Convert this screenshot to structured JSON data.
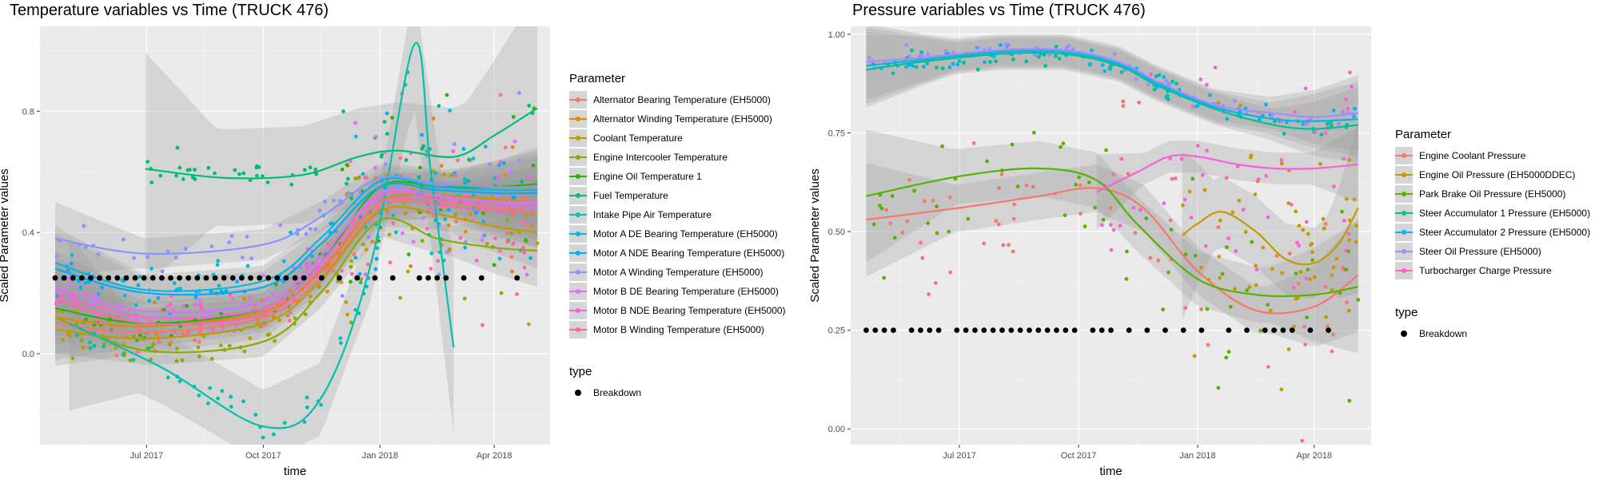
{
  "chart_data": [
    {
      "type": "scatter",
      "title": "Temperature variables vs Time (TRUCK 476)",
      "xlabel": "time",
      "ylabel": "Scaled Parameter values",
      "x_ticks": [
        "Jul 2017",
        "Oct 2017",
        "Jan 2018",
        "Apr 2018"
      ],
      "x_tick_dates": [
        "2017-07-01",
        "2017-10-01",
        "2018-01-01",
        "2018-04-01"
      ],
      "xlim": [
        "2017-04-08",
        "2018-05-15"
      ],
      "y_ticks": [
        "0.0",
        "0.4",
        "0.8"
      ],
      "y_tick_values": [
        0.0,
        0.4,
        0.8
      ],
      "ylim": [
        -0.3,
        1.08
      ],
      "legend_title": "Parameter",
      "legend_position": "right",
      "type_legend_title": "type",
      "type_legend_label": "Breakdown",
      "grid": true,
      "series": [
        {
          "name": "Alternator Bearing Temperature (EH5000)",
          "color": "#F8766D",
          "x": [
            "2017-04-20",
            "2017-07-01",
            "2017-10-01",
            "2017-11-15",
            "2018-01-01",
            "2018-02-15",
            "2018-04-01",
            "2018-05-05"
          ],
          "values": [
            0.1,
            0.07,
            0.12,
            0.25,
            0.48,
            0.5,
            0.48,
            0.47
          ]
        },
        {
          "name": "Alternator Winding Temperature (EH5000)",
          "color": "#E18A00",
          "x": [
            "2017-04-20",
            "2017-07-01",
            "2017-10-01",
            "2017-11-15",
            "2018-01-01",
            "2018-02-15",
            "2018-04-01",
            "2018-05-05"
          ],
          "values": [
            0.12,
            0.09,
            0.14,
            0.27,
            0.5,
            0.52,
            0.51,
            0.5
          ]
        },
        {
          "name": "Coolant Temperature",
          "color": "#BE9C00",
          "x": [
            "2017-04-20",
            "2017-07-01",
            "2017-10-01",
            "2017-11-15",
            "2018-01-01",
            "2018-02-15",
            "2018-04-01",
            "2018-05-05"
          ],
          "values": [
            0.08,
            0.05,
            0.1,
            0.24,
            0.47,
            0.46,
            0.42,
            0.4
          ]
        },
        {
          "name": "Engine Intercooler Temperature",
          "color": "#8CAB00",
          "x": [
            "2017-04-20",
            "2017-07-01",
            "2017-10-01",
            "2017-11-15",
            "2018-01-01",
            "2018-02-15",
            "2018-04-01",
            "2018-05-05"
          ],
          "values": [
            0.12,
            0.01,
            0.04,
            0.2,
            0.44,
            0.38,
            0.35,
            0.34
          ]
        },
        {
          "name": "Engine Oil Temperature 1",
          "color": "#24B700",
          "x": [
            "2017-04-20",
            "2017-07-01",
            "2017-10-01",
            "2017-11-15",
            "2018-01-01",
            "2018-02-15",
            "2018-04-01",
            "2018-05-05"
          ],
          "values": [
            0.15,
            0.1,
            0.15,
            0.3,
            0.55,
            0.55,
            0.55,
            0.56
          ]
        },
        {
          "name": "Fuel Temperature",
          "color": "#00BE70",
          "x": [
            "2017-06-30",
            "2017-09-01",
            "2017-11-01",
            "2017-12-15",
            "2018-01-15",
            "2018-03-01",
            "2018-04-01",
            "2018-05-05"
          ],
          "values": [
            0.61,
            0.58,
            0.59,
            0.65,
            0.67,
            0.65,
            0.72,
            0.81
          ]
        },
        {
          "name": "Intake Pipe Air Temperature",
          "color": "#00C1AB",
          "x": [
            "2017-05-01",
            "2017-07-15",
            "2017-10-01",
            "2017-11-15",
            "2017-12-25",
            "2018-01-28",
            "2018-02-10",
            "2018-02-28"
          ],
          "values": [
            0.1,
            -0.05,
            -0.24,
            -0.15,
            0.3,
            1.02,
            0.6,
            0.02
          ]
        },
        {
          "name": "Motor A DE Bearing Temperature (EH5000)",
          "color": "#00BBDA",
          "x": [
            "2017-04-20",
            "2017-07-01",
            "2017-10-01",
            "2017-11-15",
            "2018-01-01",
            "2018-02-15",
            "2018-04-01",
            "2018-05-05"
          ],
          "values": [
            0.3,
            0.21,
            0.24,
            0.38,
            0.57,
            0.55,
            0.54,
            0.54
          ]
        },
        {
          "name": "Motor A NDE Bearing Temperature (EH5000)",
          "color": "#00ACFC",
          "x": [
            "2017-04-20",
            "2017-07-01",
            "2017-10-01",
            "2017-11-15",
            "2018-01-01",
            "2018-02-15",
            "2018-04-01",
            "2018-05-05"
          ],
          "values": [
            0.28,
            0.2,
            0.22,
            0.36,
            0.55,
            0.54,
            0.53,
            0.53
          ]
        },
        {
          "name": "Motor A Winding Temperature (EH5000)",
          "color": "#8B93FF",
          "x": [
            "2017-04-20",
            "2017-07-01",
            "2017-10-01",
            "2017-11-15",
            "2018-01-01",
            "2018-02-15",
            "2018-04-01",
            "2018-05-05"
          ],
          "values": [
            0.38,
            0.33,
            0.36,
            0.45,
            0.58,
            0.56,
            0.55,
            0.55
          ]
        },
        {
          "name": "Motor B DE Bearing Temperature (EH5000)",
          "color": "#D575FE",
          "x": [
            "2017-04-20",
            "2017-07-01",
            "2017-10-01",
            "2017-11-15",
            "2018-01-01",
            "2018-02-15",
            "2018-04-01",
            "2018-05-05"
          ],
          "values": [
            0.22,
            0.14,
            0.17,
            0.32,
            0.53,
            0.52,
            0.5,
            0.5
          ]
        },
        {
          "name": "Motor B NDE Bearing Temperature (EH5000)",
          "color": "#F962DD",
          "x": [
            "2017-04-20",
            "2017-07-01",
            "2017-10-01",
            "2017-11-15",
            "2018-01-01",
            "2018-02-15",
            "2018-04-01",
            "2018-05-05"
          ],
          "values": [
            0.2,
            0.12,
            0.15,
            0.3,
            0.52,
            0.51,
            0.49,
            0.49
          ]
        },
        {
          "name": "Motor B Winding Temperature (EH5000)",
          "color": "#FF65AC",
          "x": [
            "2017-04-20",
            "2017-07-01",
            "2017-10-01",
            "2017-11-15",
            "2018-01-01",
            "2018-02-15",
            "2018-04-01",
            "2018-05-05"
          ],
          "values": [
            0.18,
            0.1,
            0.13,
            0.28,
            0.5,
            0.49,
            0.47,
            0.47
          ]
        }
      ],
      "breakdown_y": 0.25,
      "breakdown_dates": [
        "2017-04-20",
        "2017-04-27",
        "2017-05-04",
        "2017-05-11",
        "2017-05-18",
        "2017-05-25",
        "2017-06-01",
        "2017-06-08",
        "2017-06-15",
        "2017-06-22",
        "2017-06-29",
        "2017-07-06",
        "2017-07-13",
        "2017-07-20",
        "2017-07-27",
        "2017-08-03",
        "2017-08-10",
        "2017-08-17",
        "2017-08-24",
        "2017-08-31",
        "2017-09-07",
        "2017-09-14",
        "2017-09-21",
        "2017-09-28",
        "2017-10-05",
        "2017-10-12",
        "2017-10-19",
        "2017-10-26",
        "2017-11-02",
        "2017-11-16",
        "2017-11-30",
        "2017-12-14",
        "2017-12-28",
        "2018-01-11",
        "2018-02-01",
        "2018-02-08",
        "2018-02-15",
        "2018-02-22",
        "2018-03-08",
        "2018-03-22",
        "2018-04-19"
      ]
    },
    {
      "type": "scatter",
      "title": "Pressure variables vs Time (TRUCK 476)",
      "xlabel": "time",
      "ylabel": "Scaled Parameter values",
      "x_ticks": [
        "Jul 2017",
        "Oct 2017",
        "Jan 2018",
        "Apr 2018"
      ],
      "x_tick_dates": [
        "2017-07-01",
        "2017-10-01",
        "2018-01-01",
        "2018-04-01"
      ],
      "xlim": [
        "2017-04-08",
        "2018-05-15"
      ],
      "y_ticks": [
        "0.00",
        "0.25",
        "0.50",
        "0.75",
        "1.00"
      ],
      "y_tick_values": [
        0.0,
        0.25,
        0.5,
        0.75,
        1.0
      ],
      "ylim": [
        -0.04,
        1.02
      ],
      "legend_title": "Parameter",
      "legend_position": "right",
      "type_legend_title": "type",
      "type_legend_label": "Breakdown",
      "grid": true,
      "series": [
        {
          "name": "Engine Coolant Pressure",
          "color": "#F8766D",
          "x": [
            "2017-04-20",
            "2017-07-01",
            "2017-09-01",
            "2017-10-15",
            "2017-11-20",
            "2018-01-01",
            "2018-02-15",
            "2018-04-01",
            "2018-05-05"
          ],
          "values": [
            0.53,
            0.56,
            0.59,
            0.61,
            0.56,
            0.4,
            0.3,
            0.31,
            0.39
          ]
        },
        {
          "name": "Engine Oil Pressure (EH5000DDEC)",
          "color": "#C49A00",
          "x": [
            "2017-12-20",
            "2018-01-01",
            "2018-01-20",
            "2018-02-15",
            "2018-03-10",
            "2018-04-01",
            "2018-04-20",
            "2018-05-05"
          ],
          "values": [
            0.49,
            0.52,
            0.55,
            0.5,
            0.43,
            0.42,
            0.47,
            0.56
          ]
        },
        {
          "name": "Park Brake Oil Pressure (EH5000)",
          "color": "#53B400",
          "x": [
            "2017-04-20",
            "2017-07-01",
            "2017-09-01",
            "2017-10-15",
            "2017-11-15",
            "2018-01-01",
            "2018-02-15",
            "2018-04-01",
            "2018-05-05"
          ],
          "values": [
            0.59,
            0.64,
            0.66,
            0.63,
            0.52,
            0.38,
            0.34,
            0.34,
            0.36
          ]
        },
        {
          "name": "Steer Accumulator 1 Pressure (EH5000)",
          "color": "#00C094",
          "x": [
            "2017-04-20",
            "2017-06-01",
            "2017-08-01",
            "2017-09-20",
            "2017-11-01",
            "2017-12-01",
            "2018-01-15",
            "2018-03-01",
            "2018-04-01",
            "2018-05-05"
          ],
          "values": [
            0.91,
            0.93,
            0.95,
            0.95,
            0.92,
            0.87,
            0.81,
            0.77,
            0.76,
            0.77
          ]
        },
        {
          "name": "Steer Accumulator 2 Pressure (EH5000)",
          "color": "#00B6EB",
          "x": [
            "2017-04-20",
            "2017-06-01",
            "2017-08-01",
            "2017-09-20",
            "2017-11-01",
            "2017-12-01",
            "2018-01-15",
            "2018-03-01",
            "2018-04-01",
            "2018-05-05"
          ],
          "values": [
            0.92,
            0.935,
            0.955,
            0.955,
            0.925,
            0.875,
            0.815,
            0.785,
            0.78,
            0.785
          ]
        },
        {
          "name": "Steer Oil Pressure (EH5000)",
          "color": "#A58AFF",
          "x": [
            "2017-04-20",
            "2017-06-01",
            "2017-08-01",
            "2017-09-20",
            "2017-11-01",
            "2017-12-01",
            "2018-01-15",
            "2018-03-01",
            "2018-04-01",
            "2018-05-05"
          ],
          "values": [
            0.93,
            0.94,
            0.96,
            0.96,
            0.93,
            0.88,
            0.82,
            0.8,
            0.79,
            0.8
          ]
        },
        {
          "name": "Turbocharger Charge Pressure",
          "color": "#FB61D7",
          "x": [
            "2017-10-15",
            "2017-11-15",
            "2017-12-10",
            "2018-01-01",
            "2018-02-01",
            "2018-03-01",
            "2018-04-01",
            "2018-05-05"
          ],
          "values": [
            0.6,
            0.65,
            0.69,
            0.69,
            0.67,
            0.66,
            0.66,
            0.67
          ]
        }
      ],
      "breakdown_y": 0.25,
      "breakdown_dates": [
        "2017-04-20",
        "2017-04-27",
        "2017-05-04",
        "2017-05-11",
        "2017-05-25",
        "2017-06-01",
        "2017-06-08",
        "2017-06-15",
        "2017-06-29",
        "2017-07-06",
        "2017-07-13",
        "2017-07-20",
        "2017-07-27",
        "2017-08-03",
        "2017-08-10",
        "2017-08-17",
        "2017-08-24",
        "2017-08-31",
        "2017-09-07",
        "2017-09-14",
        "2017-09-21",
        "2017-09-28",
        "2017-10-12",
        "2017-10-19",
        "2017-10-26",
        "2017-11-09",
        "2017-11-23",
        "2017-12-07",
        "2017-12-21",
        "2018-01-04",
        "2018-01-25",
        "2018-02-08",
        "2018-02-22",
        "2018-03-01",
        "2018-03-08",
        "2018-03-15",
        "2018-03-29",
        "2018-04-12"
      ]
    }
  ]
}
